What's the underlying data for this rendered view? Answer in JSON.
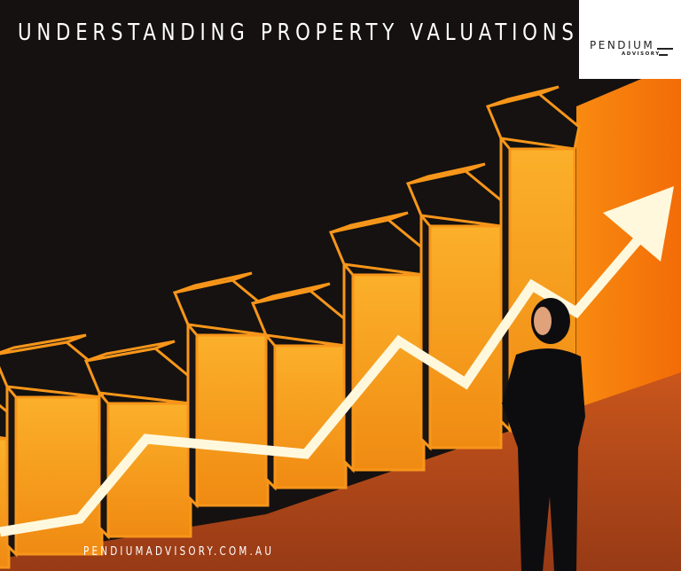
{
  "title": "UNDERSTANDING PROPERTY VALUATIONS",
  "logo": {
    "name": "PENDIUM",
    "sub": "ADVISORY"
  },
  "website": "PENDIUMADVISORY.COM.AU",
  "colors": {
    "background": "#141110",
    "bar_orange": "#f7a21b",
    "floor": "#a8441a",
    "arrow": "#fff8dc"
  }
}
